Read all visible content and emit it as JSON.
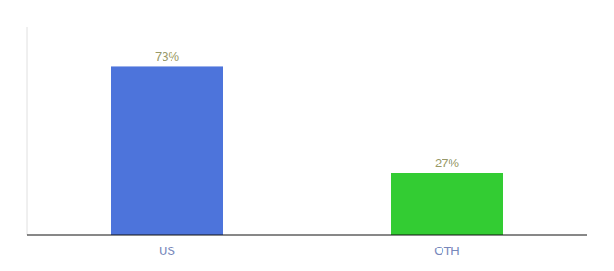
{
  "chart_data": {
    "type": "bar",
    "categories": [
      "US",
      "OTH"
    ],
    "values": [
      73,
      27
    ],
    "value_labels": [
      "73%",
      "27%"
    ],
    "colors": [
      "#4d74db",
      "#33cc33"
    ],
    "ylim": [
      0,
      90
    ],
    "data_labels": true,
    "tick_labels": "x"
  }
}
